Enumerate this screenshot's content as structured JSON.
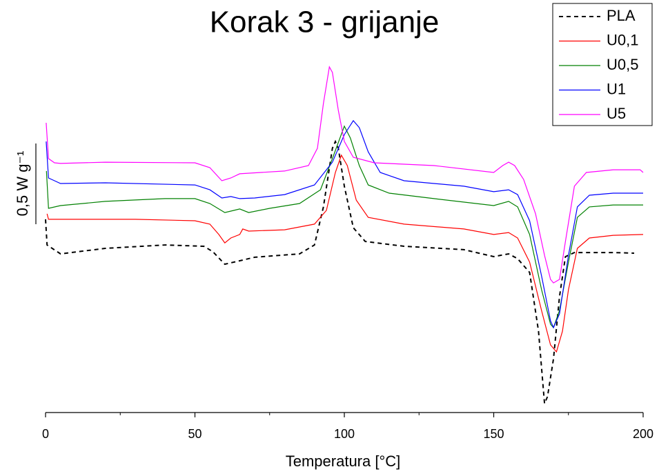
{
  "chart_data": {
    "type": "line",
    "title": "Korak 3 - grijanje",
    "x_label": "Temperatura [°C]",
    "y_label": "0,5 W g⁻¹",
    "scale_bar": 0.5,
    "xlim": [
      0,
      200
    ],
    "xticks": [
      0,
      50,
      100,
      150,
      200
    ],
    "xminor": [
      25,
      75,
      125,
      175
    ],
    "ylim": [
      0,
      2.5
    ],
    "legend": "top-right",
    "series": [
      {
        "name": "PLA",
        "color": "#000000",
        "dash": true,
        "x": [
          0,
          0.5,
          5,
          20,
          40,
          53,
          56,
          60,
          65,
          70,
          85,
          90,
          93,
          96,
          97,
          98,
          100,
          103,
          107,
          120,
          140,
          150,
          155,
          158,
          162,
          165,
          167,
          168,
          170,
          172,
          174,
          177,
          190,
          197
        ],
        "values": [
          1.197,
          1.038,
          0.983,
          1.017,
          1.038,
          1.03,
          0.996,
          0.919,
          0.94,
          0.962,
          0.983,
          1.038,
          1.274,
          1.637,
          1.679,
          1.637,
          1.402,
          1.145,
          1.06,
          1.03,
          1.009,
          0.966,
          0.983,
          0.953,
          0.868,
          0.504,
          0.056,
          0.098,
          0.333,
          0.718,
          0.966,
          0.991,
          0.991,
          0.987
        ]
      },
      {
        "name": "U0,1",
        "color": "#ff0000",
        "x": [
          0.5,
          1,
          5,
          30,
          50,
          55,
          58,
          60,
          62,
          65,
          66,
          68,
          80,
          90,
          94,
          97,
          99,
          101,
          104,
          108,
          120,
          140,
          150,
          155,
          158,
          162,
          166,
          169,
          171,
          173,
          175,
          178,
          182,
          190,
          200
        ],
        "values": [
          1.231,
          1.197,
          1.197,
          1.197,
          1.188,
          1.167,
          1.103,
          1.051,
          1.081,
          1.103,
          1.137,
          1.124,
          1.132,
          1.167,
          1.252,
          1.487,
          1.594,
          1.53,
          1.316,
          1.209,
          1.167,
          1.137,
          1.103,
          1.115,
          1.081,
          0.932,
          0.632,
          0.419,
          0.376,
          0.504,
          0.761,
          1.017,
          1.081,
          1.098,
          1.103
        ]
      },
      {
        "name": "U0,5",
        "color": "#008000",
        "x": [
          0.3,
          1,
          5,
          20,
          40,
          50,
          55,
          60,
          63,
          65,
          68,
          75,
          85,
          92,
          96,
          100,
          102,
          105,
          108,
          115,
          130,
          150,
          155,
          158,
          162,
          166,
          169,
          170,
          172,
          175,
          178,
          182,
          190,
          200
        ],
        "values": [
          1.496,
          1.265,
          1.282,
          1.308,
          1.325,
          1.325,
          1.295,
          1.239,
          1.252,
          1.261,
          1.239,
          1.265,
          1.295,
          1.38,
          1.573,
          1.774,
          1.701,
          1.53,
          1.41,
          1.359,
          1.325,
          1.282,
          1.308,
          1.274,
          1.103,
          0.761,
          0.547,
          0.526,
          0.632,
          0.932,
          1.209,
          1.274,
          1.286,
          1.286
        ]
      },
      {
        "name": "U1",
        "color": "#0000ff",
        "x": [
          0.2,
          1,
          3,
          5,
          20,
          50,
          55,
          59,
          62,
          65,
          70,
          80,
          90,
          96,
          100,
          103,
          105,
          108,
          112,
          120,
          140,
          150,
          155,
          158,
          162,
          166,
          169,
          170,
          172,
          175,
          178,
          182,
          190,
          200
        ],
        "values": [
          1.679,
          1.453,
          1.436,
          1.419,
          1.423,
          1.41,
          1.38,
          1.329,
          1.338,
          1.325,
          1.329,
          1.35,
          1.41,
          1.551,
          1.722,
          1.808,
          1.765,
          1.615,
          1.487,
          1.436,
          1.402,
          1.368,
          1.38,
          1.35,
          1.188,
          0.846,
          0.568,
          0.526,
          0.611,
          0.974,
          1.274,
          1.346,
          1.359,
          1.359
        ]
      },
      {
        "name": "U5",
        "color": "#ff00ff",
        "x": [
          0.2,
          1,
          3,
          5,
          20,
          50,
          55,
          59,
          62,
          65,
          80,
          88,
          91,
          93,
          95,
          96,
          98,
          100,
          103,
          110,
          130,
          150,
          153,
          155,
          157,
          160,
          164,
          167,
          169,
          170,
          172,
          174,
          177,
          181,
          190,
          199,
          200
        ],
        "values": [
          1.795,
          1.573,
          1.547,
          1.543,
          1.551,
          1.547,
          1.517,
          1.436,
          1.453,
          1.479,
          1.496,
          1.53,
          1.637,
          1.915,
          2.141,
          2.107,
          1.872,
          1.679,
          1.581,
          1.547,
          1.53,
          1.487,
          1.53,
          1.551,
          1.53,
          1.444,
          1.231,
          0.974,
          0.825,
          0.803,
          0.825,
          1.06,
          1.402,
          1.487,
          1.504,
          1.504,
          1.487
        ]
      }
    ]
  }
}
